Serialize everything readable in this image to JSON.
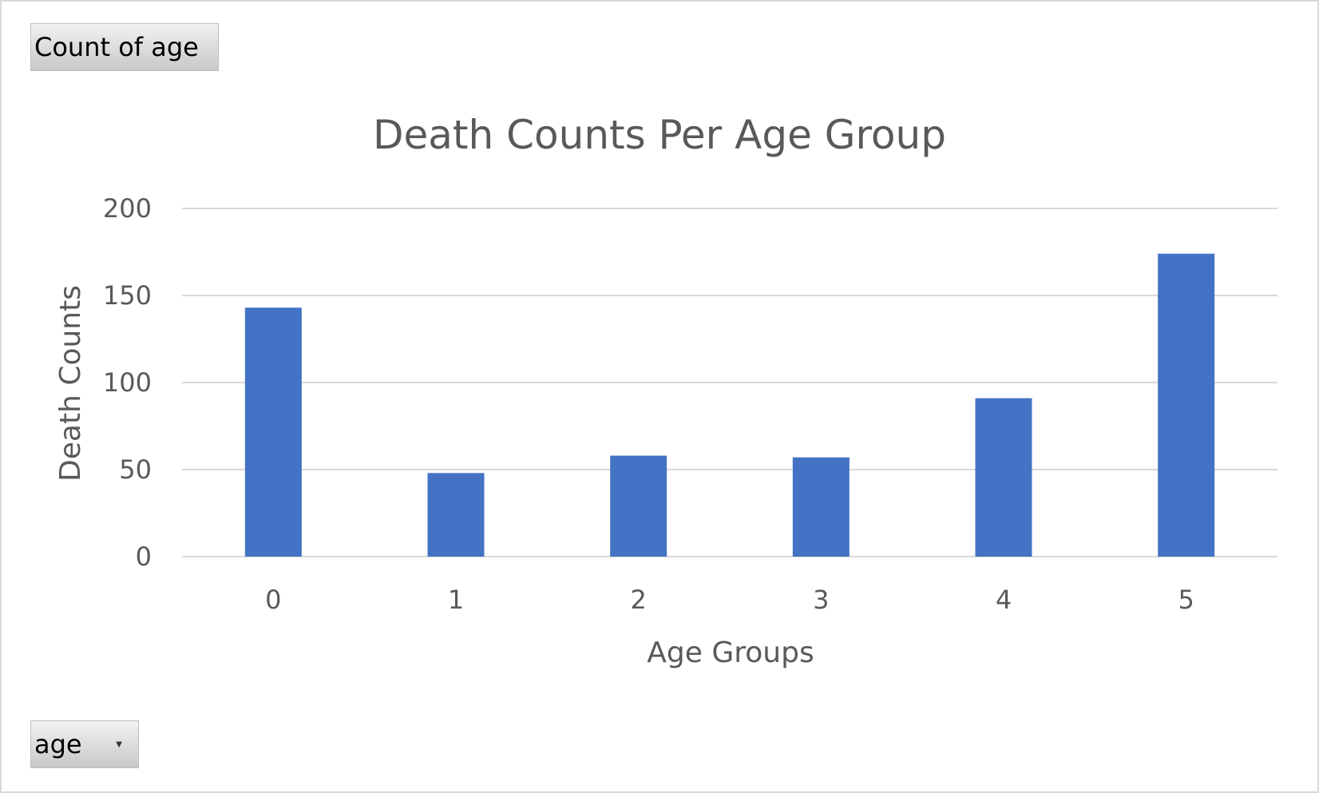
{
  "pivot": {
    "value_field_label": "Count of age",
    "axis_field_label": "age",
    "axis_field_dropdown_icon": "dropdown-arrow-icon"
  },
  "colors": {
    "bar": "#4472c4",
    "text": "#595959",
    "grid": "#d9d9d9"
  },
  "chart_data": {
    "type": "bar",
    "title": "Death Counts Per Age Group",
    "xlabel": "Age Groups",
    "ylabel": "Death Counts",
    "categories": [
      "0",
      "1",
      "2",
      "3",
      "4",
      "5"
    ],
    "values": [
      143,
      48,
      58,
      57,
      91,
      174
    ],
    "ylim": [
      0,
      200
    ],
    "yticks": [
      0,
      50,
      100,
      150,
      200
    ],
    "grid": true,
    "legend": "none"
  }
}
